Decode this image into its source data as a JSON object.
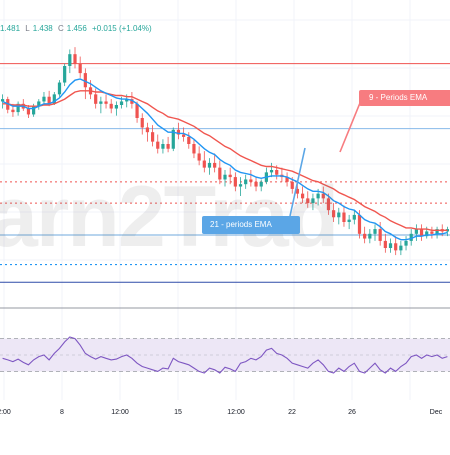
{
  "ohlc": {
    "open": "1.481",
    "low_key": "L",
    "low": "1.438",
    "close_key": "C",
    "close": "1.456",
    "change": "+0.015 (+1.04%)"
  },
  "watermark": {
    "text": "arn2Trad"
  },
  "callouts": {
    "ema9": "9 - Periods EMA",
    "ema21": "21 - periods EMA"
  },
  "colors": {
    "up": "#26a69a",
    "down": "#ef5350",
    "ema9": "#2196f3",
    "ema21": "#f0564f",
    "rsi": "#7e57c2",
    "rsi_band": "#ede7f6",
    "resistance": "#ef5350",
    "support": "#2196f3"
  },
  "chart_data": [
    {
      "type": "candlestick",
      "x_tick_labels": [
        "2:00",
        "8",
        "12:00",
        "15",
        "12:00",
        "22",
        "26",
        "Dec"
      ],
      "ylim": [
        1.3,
        1.52
      ],
      "candles": [
        [
          1.468,
          1.474,
          1.462,
          1.47
        ],
        [
          1.47,
          1.472,
          1.458,
          1.461
        ],
        [
          1.461,
          1.466,
          1.455,
          1.459
        ],
        [
          1.459,
          1.468,
          1.456,
          1.466
        ],
        [
          1.466,
          1.47,
          1.46,
          1.462
        ],
        [
          1.462,
          1.465,
          1.454,
          1.457
        ],
        [
          1.457,
          1.466,
          1.455,
          1.464
        ],
        [
          1.464,
          1.47,
          1.461,
          1.468
        ],
        [
          1.468,
          1.476,
          1.466,
          1.472
        ],
        [
          1.472,
          1.477,
          1.464,
          1.466
        ],
        [
          1.466,
          1.476,
          1.465,
          1.474
        ],
        [
          1.474,
          1.486,
          1.472,
          1.484
        ],
        [
          1.484,
          1.5,
          1.481,
          1.498
        ],
        [
          1.498,
          1.512,
          1.492,
          1.508
        ],
        [
          1.508,
          1.514,
          1.496,
          1.5
        ],
        [
          1.5,
          1.506,
          1.488,
          1.492
        ],
        [
          1.492,
          1.496,
          1.47,
          1.48
        ],
        [
          1.48,
          1.486,
          1.47,
          1.474
        ],
        [
          1.474,
          1.479,
          1.462,
          1.466
        ],
        [
          1.466,
          1.472,
          1.458,
          1.468
        ],
        [
          1.468,
          1.474,
          1.462,
          1.466
        ],
        [
          1.466,
          1.47,
          1.458,
          1.462
        ],
        [
          1.462,
          1.468,
          1.456,
          1.465
        ],
        [
          1.465,
          1.472,
          1.462,
          1.468
        ],
        [
          1.468,
          1.474,
          1.463,
          1.47
        ],
        [
          1.47,
          1.476,
          1.462,
          1.466
        ],
        [
          1.466,
          1.468,
          1.45,
          1.454
        ],
        [
          1.454,
          1.458,
          1.44,
          1.446
        ],
        [
          1.446,
          1.45,
          1.434,
          1.442
        ],
        [
          1.442,
          1.448,
          1.43,
          1.434
        ],
        [
          1.434,
          1.44,
          1.424,
          1.428
        ],
        [
          1.428,
          1.436,
          1.424,
          1.432
        ],
        [
          1.432,
          1.438,
          1.425,
          1.428
        ],
        [
          1.428,
          1.446,
          1.426,
          1.444
        ],
        [
          1.444,
          1.45,
          1.436,
          1.44
        ],
        [
          1.44,
          1.446,
          1.434,
          1.438
        ],
        [
          1.438,
          1.442,
          1.428,
          1.432
        ],
        [
          1.432,
          1.436,
          1.42,
          1.424
        ],
        [
          1.424,
          1.43,
          1.414,
          1.418
        ],
        [
          1.418,
          1.426,
          1.408,
          1.412
        ],
        [
          1.412,
          1.42,
          1.406,
          1.416
        ],
        [
          1.416,
          1.424,
          1.408,
          1.412
        ],
        [
          1.412,
          1.418,
          1.398,
          1.402
        ],
        [
          1.402,
          1.41,
          1.396,
          1.406
        ],
        [
          1.406,
          1.412,
          1.398,
          1.404
        ],
        [
          1.404,
          1.408,
          1.392,
          1.396
        ],
        [
          1.396,
          1.404,
          1.388,
          1.398
        ],
        [
          1.398,
          1.406,
          1.394,
          1.402
        ],
        [
          1.402,
          1.41,
          1.396,
          1.4
        ],
        [
          1.4,
          1.404,
          1.392,
          1.396
        ],
        [
          1.396,
          1.402,
          1.392,
          1.4
        ],
        [
          1.4,
          1.412,
          1.398,
          1.408
        ],
        [
          1.408,
          1.416,
          1.404,
          1.41
        ],
        [
          1.41,
          1.414,
          1.402,
          1.406
        ],
        [
          1.406,
          1.412,
          1.4,
          1.404
        ],
        [
          1.404,
          1.408,
          1.396,
          1.4
        ],
        [
          1.4,
          1.404,
          1.39,
          1.394
        ],
        [
          1.394,
          1.4,
          1.386,
          1.39
        ],
        [
          1.39,
          1.396,
          1.382,
          1.386
        ],
        [
          1.386,
          1.392,
          1.378,
          1.382
        ],
        [
          1.382,
          1.39,
          1.376,
          1.386
        ],
        [
          1.386,
          1.394,
          1.38,
          1.39
        ],
        [
          1.39,
          1.396,
          1.382,
          1.386
        ],
        [
          1.386,
          1.39,
          1.372,
          1.376
        ],
        [
          1.376,
          1.382,
          1.366,
          1.37
        ],
        [
          1.37,
          1.378,
          1.364,
          1.374
        ],
        [
          1.374,
          1.38,
          1.362,
          1.366
        ],
        [
          1.366,
          1.372,
          1.36,
          1.368
        ],
        [
          1.368,
          1.376,
          1.364,
          1.372
        ],
        [
          1.372,
          1.376,
          1.352,
          1.356
        ],
        [
          1.356,
          1.362,
          1.348,
          1.352
        ],
        [
          1.352,
          1.36,
          1.348,
          1.356
        ],
        [
          1.356,
          1.364,
          1.35,
          1.36
        ],
        [
          1.36,
          1.366,
          1.346,
          1.35
        ],
        [
          1.35,
          1.356,
          1.34,
          1.344
        ],
        [
          1.344,
          1.352,
          1.34,
          1.348
        ],
        [
          1.348,
          1.354,
          1.338,
          1.342
        ],
        [
          1.342,
          1.35,
          1.338,
          1.346
        ],
        [
          1.346,
          1.354,
          1.342,
          1.35
        ],
        [
          1.35,
          1.36,
          1.346,
          1.356
        ],
        [
          1.356,
          1.364,
          1.35,
          1.36
        ],
        [
          1.36,
          1.364,
          1.35,
          1.354
        ],
        [
          1.354,
          1.362,
          1.352,
          1.358
        ],
        [
          1.358,
          1.362,
          1.352,
          1.356
        ],
        [
          1.356,
          1.362,
          1.352,
          1.36
        ],
        [
          1.36,
          1.364,
          1.354,
          1.358
        ],
        [
          1.358,
          1.362,
          1.354,
          1.36
        ]
      ],
      "ema9": [
        1.468,
        1.466,
        1.464,
        1.464,
        1.464,
        1.462,
        1.462,
        1.464,
        1.466,
        1.466,
        1.468,
        1.471,
        1.476,
        1.482,
        1.486,
        1.487,
        1.485,
        1.483,
        1.48,
        1.477,
        1.475,
        1.473,
        1.471,
        1.47,
        1.47,
        1.469,
        1.466,
        1.462,
        1.458,
        1.453,
        1.448,
        1.445,
        1.442,
        1.442,
        1.441,
        1.441,
        1.439,
        1.436,
        1.432,
        1.428,
        1.425,
        1.423,
        1.419,
        1.416,
        1.414,
        1.41,
        1.408,
        1.407,
        1.406,
        1.404,
        1.403,
        1.404,
        1.405,
        1.405,
        1.405,
        1.404,
        1.402,
        1.4,
        1.397,
        1.394,
        1.392,
        1.392,
        1.391,
        1.388,
        1.384,
        1.382,
        1.379,
        1.377,
        1.376,
        1.372,
        1.368,
        1.366,
        1.365,
        1.362,
        1.358,
        1.356,
        1.353,
        1.351,
        1.351,
        1.352,
        1.354,
        1.354,
        1.355,
        1.355,
        1.356,
        1.356,
        1.357
      ],
      "ema21": [
        1.466,
        1.466,
        1.465,
        1.465,
        1.465,
        1.464,
        1.464,
        1.464,
        1.465,
        1.465,
        1.466,
        1.468,
        1.47,
        1.473,
        1.476,
        1.477,
        1.477,
        1.477,
        1.476,
        1.476,
        1.475,
        1.474,
        1.473,
        1.473,
        1.472,
        1.472,
        1.47,
        1.468,
        1.466,
        1.463,
        1.46,
        1.458,
        1.455,
        1.454,
        1.453,
        1.451,
        1.449,
        1.447,
        1.444,
        1.441,
        1.439,
        1.436,
        1.433,
        1.43,
        1.428,
        1.425,
        1.422,
        1.42,
        1.418,
        1.416,
        1.414,
        1.413,
        1.413,
        1.412,
        1.411,
        1.41,
        1.409,
        1.407,
        1.405,
        1.403,
        1.401,
        1.4,
        1.398,
        1.396,
        1.394,
        1.391,
        1.389,
        1.387,
        1.385,
        1.382,
        1.379,
        1.377,
        1.375,
        1.372,
        1.37,
        1.367,
        1.365,
        1.363,
        1.361,
        1.361,
        1.36,
        1.36,
        1.36,
        1.359,
        1.359,
        1.359,
        1.359
      ],
      "resistance_levels": [
        1.5,
        1.4,
        1.382
      ],
      "support_levels": [
        1.445,
        1.355,
        1.33,
        1.315
      ]
    },
    {
      "type": "line",
      "series": [
        {
          "values": [
            46,
            44,
            42,
            45,
            41,
            38,
            44,
            48,
            50,
            44,
            52,
            58,
            66,
            72,
            70,
            62,
            52,
            48,
            45,
            48,
            46,
            44,
            45,
            48,
            50,
            46,
            40,
            36,
            34,
            32,
            30,
            34,
            33,
            46,
            42,
            40,
            38,
            34,
            30,
            28,
            34,
            32,
            28,
            35,
            33,
            30,
            40,
            42,
            46,
            44,
            48,
            56,
            58,
            52,
            50,
            46,
            40,
            38,
            36,
            34,
            40,
            44,
            38,
            30,
            28,
            34,
            30,
            36,
            40,
            30,
            28,
            34,
            40,
            32,
            28,
            34,
            30,
            36,
            40,
            48,
            50,
            46,
            50,
            48,
            50,
            46,
            48
          ]
        }
      ],
      "ylim": [
        0,
        100
      ],
      "bands": [
        30,
        70
      ]
    }
  ]
}
